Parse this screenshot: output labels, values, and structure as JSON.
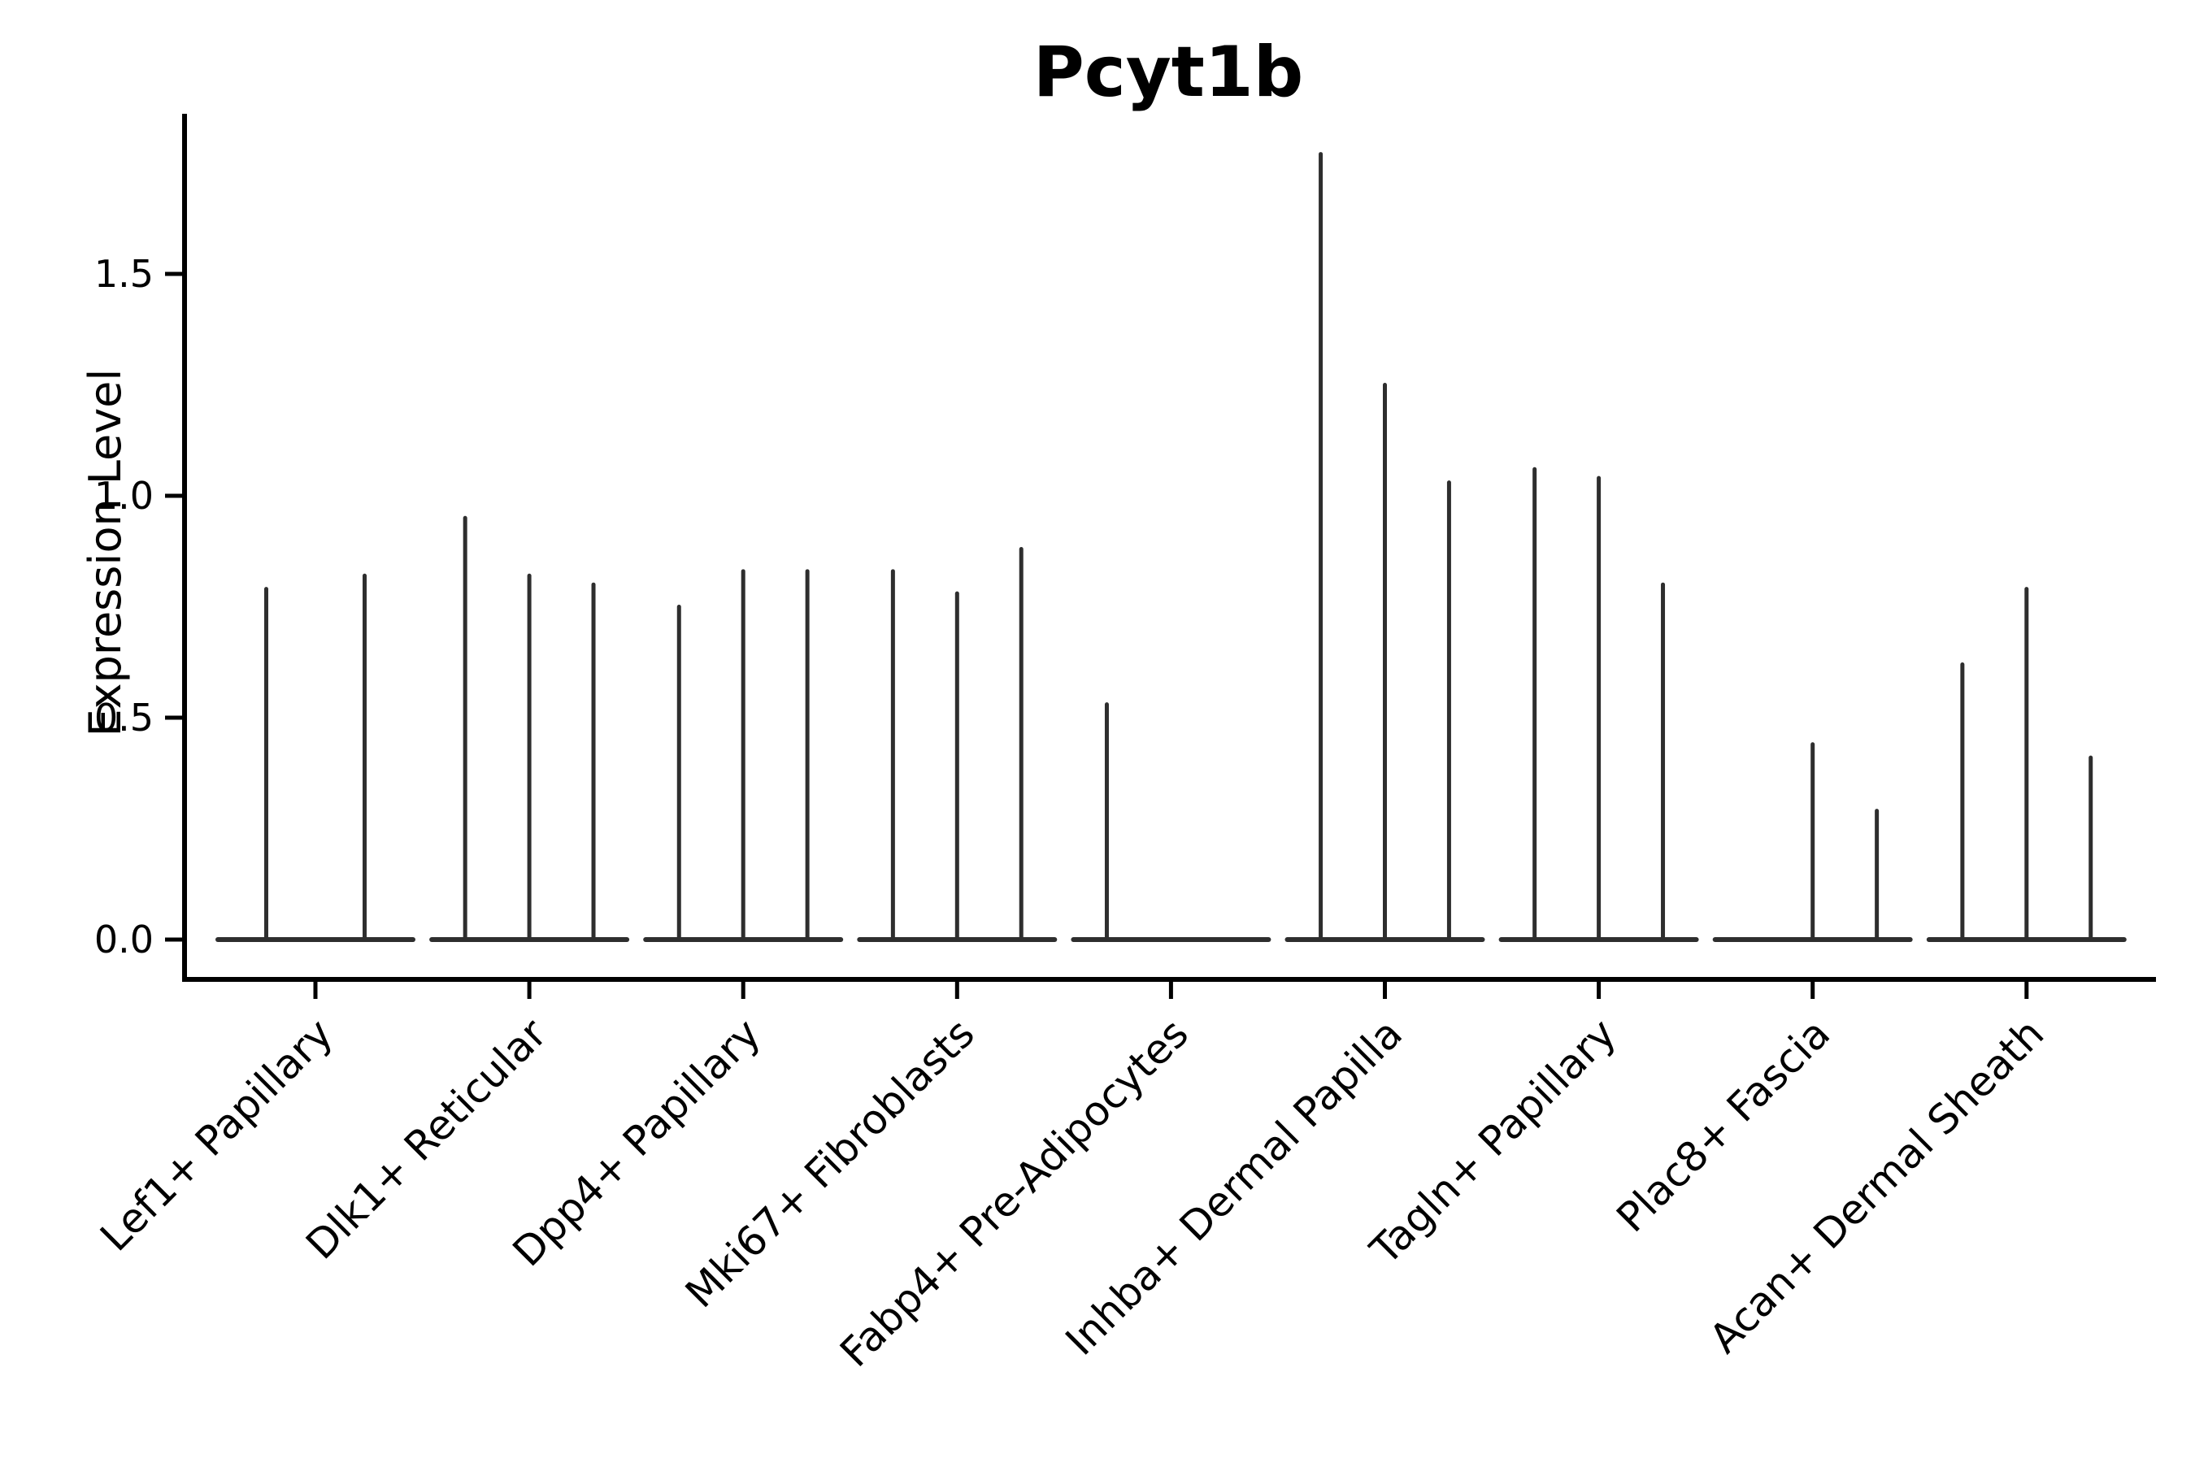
{
  "title": "Pcyt1b",
  "chart_data": {
    "type": "violin",
    "title": "Pcyt1b",
    "xlabel": "",
    "ylabel": "Expression Level",
    "ylim": [
      0,
      1.87
    ],
    "yticks": [
      0.0,
      0.5,
      1.0,
      1.5
    ],
    "ytick_labels": [
      "0.0",
      "0.5",
      "1.0",
      "1.5"
    ],
    "grid": false,
    "legend_position": "none",
    "style_note": "Seurat-style violin plot; each cluster shows 2-3 needle-thin split violins rising from a flat zero baseline; value recorded is each spike's maximum expression level",
    "categories": [
      "Lef1+ Papillary",
      "Dlk1+ Reticular",
      "Dpp4+ Papillary",
      "Mki67+ Fibroblasts",
      "Fabp4+ Pre-Adipocytes",
      "Inhba+ Dermal Papilla",
      "Tagln+ Papillary",
      "Plac8+ Fascia",
      "Acan+ Dermal Sheath"
    ],
    "groups": [
      {
        "category": "Lef1+ Papillary",
        "spikes": [
          {
            "offset": -0.23,
            "max": 0.79
          },
          {
            "offset": 0.23,
            "max": 0.82
          }
        ]
      },
      {
        "category": "Dlk1+ Reticular",
        "spikes": [
          {
            "offset": -0.3,
            "max": 0.95
          },
          {
            "offset": 0.0,
            "max": 0.82
          },
          {
            "offset": 0.3,
            "max": 0.8
          }
        ]
      },
      {
        "category": "Dpp4+ Papillary",
        "spikes": [
          {
            "offset": -0.3,
            "max": 0.75
          },
          {
            "offset": 0.0,
            "max": 0.83
          },
          {
            "offset": 0.3,
            "max": 0.83
          }
        ]
      },
      {
        "category": "Mki67+ Fibroblasts",
        "spikes": [
          {
            "offset": -0.3,
            "max": 0.83
          },
          {
            "offset": 0.0,
            "max": 0.78
          },
          {
            "offset": 0.3,
            "max": 0.88
          }
        ]
      },
      {
        "category": "Fabp4+ Pre-Adipocytes",
        "spikes": [
          {
            "offset": -0.3,
            "max": 0.53
          },
          {
            "offset": 0.0,
            "max": 0.0
          },
          {
            "offset": 0.3,
            "max": 0.0
          }
        ]
      },
      {
        "category": "Inhba+ Dermal Papilla",
        "spikes": [
          {
            "offset": -0.3,
            "max": 1.77
          },
          {
            "offset": 0.0,
            "max": 1.25
          },
          {
            "offset": 0.3,
            "max": 1.03
          }
        ]
      },
      {
        "category": "Tagln+ Papillary",
        "spikes": [
          {
            "offset": -0.3,
            "max": 1.06
          },
          {
            "offset": 0.0,
            "max": 1.04
          },
          {
            "offset": 0.3,
            "max": 0.8
          }
        ]
      },
      {
        "category": "Plac8+ Fascia",
        "spikes": [
          {
            "offset": -0.3,
            "max": 0.0
          },
          {
            "offset": 0.0,
            "max": 0.44
          },
          {
            "offset": 0.3,
            "max": 0.29
          }
        ]
      },
      {
        "category": "Acan+ Dermal Sheath",
        "spikes": [
          {
            "offset": -0.3,
            "max": 0.62
          },
          {
            "offset": 0.0,
            "max": 0.79
          },
          {
            "offset": 0.3,
            "max": 0.41
          }
        ]
      }
    ]
  },
  "colors": {
    "violin_line": "#2e2e2e",
    "baseline": "#2e2e2e",
    "axis_spine": "#000000",
    "tick_mark": "#000000",
    "text": "#000000",
    "background": "#ffffff"
  }
}
